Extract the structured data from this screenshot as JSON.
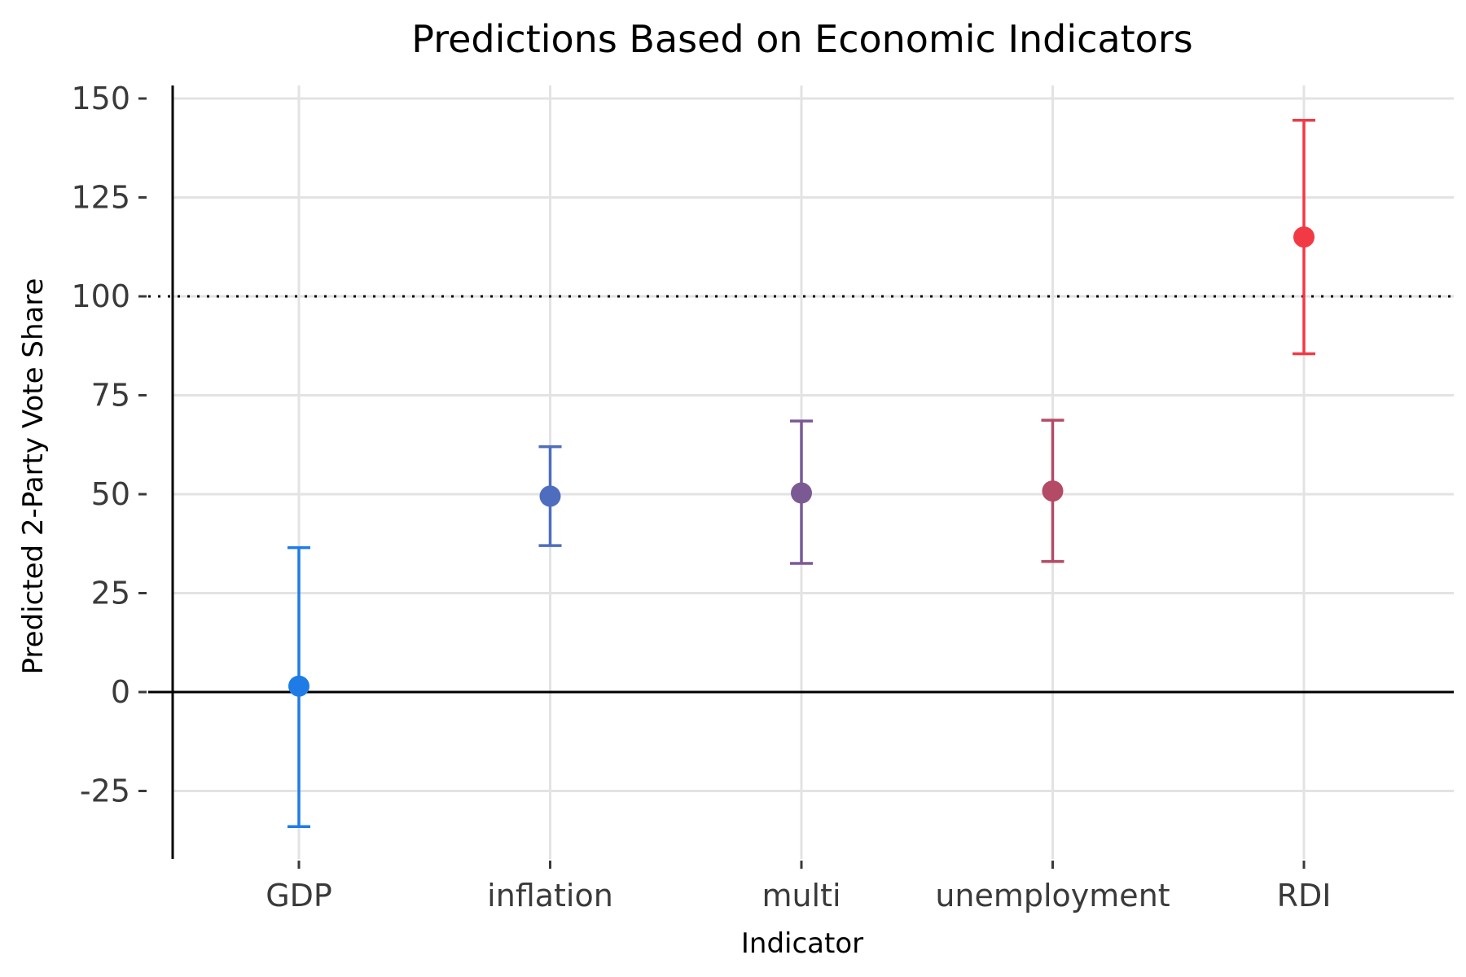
{
  "chart_data": {
    "type": "scatter",
    "title": "Predictions Based on Economic Indicators",
    "xlabel": "Indicator",
    "ylabel": "Predicted 2-Party Vote Share",
    "categories": [
      "GDP",
      "inflation",
      "multi",
      "unemployment",
      "RDI"
    ],
    "points": [
      {
        "category": "GDP",
        "value": 1.5,
        "lower": -34,
        "upper": 36.5,
        "color": "#1f7ce6"
      },
      {
        "category": "inflation",
        "value": 49.5,
        "lower": 37,
        "upper": 62,
        "color": "#4f6dbf"
      },
      {
        "category": "multi",
        "value": 50.3,
        "lower": 32.5,
        "upper": 68.5,
        "color": "#7b5a94"
      },
      {
        "category": "unemployment",
        "value": 50.8,
        "lower": 33,
        "upper": 68.7,
        "color": "#b34a66"
      },
      {
        "category": "RDI",
        "value": 115,
        "lower": 85.5,
        "upper": 144.5,
        "color": "#f23a45"
      }
    ],
    "yticks": [
      -25,
      0,
      25,
      50,
      75,
      100,
      125,
      150
    ],
    "ylim": [
      -42,
      152
    ],
    "reference_lines": [
      {
        "value": 0,
        "style": "solid"
      },
      {
        "value": 100,
        "style": "dotted"
      }
    ],
    "grid": true,
    "legend": "none"
  }
}
